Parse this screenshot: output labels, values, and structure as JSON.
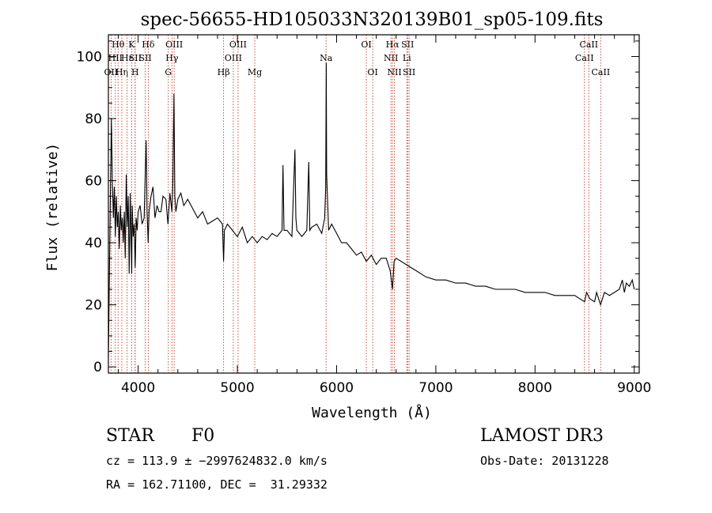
{
  "chart_data": {
    "type": "line",
    "title": "spec-56655-HD105033N320139B01_sp05-109.fits",
    "xlabel": "Wavelength (Å)",
    "ylabel": "Flux (relative)",
    "xlim": [
      3700,
      9050
    ],
    "ylim": [
      -2,
      107
    ],
    "xticks": [
      4000,
      5000,
      6000,
      7000,
      8000,
      9000
    ],
    "yticks": [
      0,
      20,
      40,
      60,
      80,
      100
    ],
    "series": [
      {
        "name": "flux",
        "x": [
          3700,
          3710,
          3720,
          3730,
          3740,
          3750,
          3760,
          3770,
          3780,
          3790,
          3800,
          3810,
          3820,
          3830,
          3840,
          3850,
          3860,
          3870,
          3880,
          3890,
          3900,
          3910,
          3920,
          3930,
          3935,
          3940,
          3950,
          3960,
          3970,
          3980,
          3990,
          4000,
          4020,
          4040,
          4060,
          4080,
          4090,
          4101,
          4110,
          4130,
          4150,
          4170,
          4190,
          4210,
          4230,
          4250,
          4280,
          4300,
          4320,
          4340,
          4350,
          4361,
          4370,
          4380,
          4400,
          4430,
          4460,
          4500,
          4550,
          4600,
          4650,
          4700,
          4750,
          4800,
          4850,
          4861,
          4870,
          4900,
          4950,
          5000,
          5050,
          5100,
          5150,
          5200,
          5250,
          5300,
          5350,
          5400,
          5450,
          5460,
          5470,
          5500,
          5550,
          5580,
          5590,
          5600,
          5650,
          5700,
          5720,
          5730,
          5750,
          5800,
          5850,
          5880,
          5890,
          5896,
          5900,
          5920,
          5950,
          6000,
          6050,
          6100,
          6150,
          6200,
          6250,
          6300,
          6350,
          6400,
          6450,
          6500,
          6540,
          6563,
          6580,
          6600,
          6650,
          6700,
          6750,
          6800,
          6850,
          6900,
          7000,
          7100,
          7200,
          7300,
          7400,
          7500,
          7600,
          7700,
          7800,
          7900,
          8000,
          8100,
          8200,
          8300,
          8400,
          8450,
          8500,
          8520,
          8550,
          8600,
          8620,
          8660,
          8700,
          8750,
          8800,
          8850,
          8880,
          8900,
          8920,
          8950,
          8980,
          9000
        ],
        "y": [
          3,
          30,
          55,
          80,
          60,
          48,
          58,
          42,
          55,
          45,
          50,
          38,
          52,
          44,
          48,
          40,
          50,
          35,
          62,
          45,
          55,
          30,
          56,
          40,
          30,
          52,
          42,
          46,
          32,
          48,
          44,
          50,
          52,
          46,
          48,
          73,
          50,
          40,
          50,
          55,
          58,
          48,
          52,
          50,
          50,
          55,
          54,
          46,
          56,
          50,
          60,
          88,
          55,
          50,
          54,
          56,
          52,
          54,
          51,
          48,
          50,
          46,
          47,
          48,
          46,
          34,
          44,
          46,
          44,
          42,
          45,
          40,
          42,
          40,
          42,
          41,
          43,
          42,
          44,
          65,
          44,
          44,
          42,
          70,
          48,
          44,
          42,
          44,
          66,
          44,
          45,
          46,
          43,
          48,
          58,
          98,
          62,
          44,
          46,
          43,
          40,
          40,
          38,
          36,
          37,
          34,
          36,
          33,
          35,
          35,
          31,
          25,
          34,
          35,
          34,
          33,
          32,
          31,
          30,
          29,
          28,
          28,
          27,
          27,
          26,
          26,
          25,
          25,
          25,
          24,
          24,
          24,
          23,
          23,
          23,
          22,
          21,
          24,
          22,
          21,
          24,
          20,
          24,
          23,
          24,
          25,
          28,
          24,
          27,
          26,
          28,
          25
        ]
      }
    ],
    "spectral_lines": [
      {
        "label": "OII",
        "wavelength": 3727,
        "row": 3
      },
      {
        "label": "Hθ",
        "wavelength": 3798,
        "row": 1
      },
      {
        "label": "HII",
        "wavelength": 3770,
        "row": 2
      },
      {
        "label": "Hη",
        "wavelength": 3835,
        "row": 3
      },
      {
        "label": "Hε",
        "wavelength": 3889,
        "row": 2
      },
      {
        "label": "K",
        "wavelength": 3934,
        "row": 1
      },
      {
        "label": "SII",
        "wavelength": 3970,
        "row": 2
      },
      {
        "label": "H",
        "wavelength": 3969,
        "row": 3
      },
      {
        "label": "Hδ",
        "wavelength": 4102,
        "row": 1
      },
      {
        "label": "SII",
        "wavelength": 4072,
        "row": 2
      },
      {
        "label": "OIII",
        "wavelength": 4363,
        "row": 1
      },
      {
        "label": "Hγ",
        "wavelength": 4341,
        "row": 2
      },
      {
        "label": "G",
        "wavelength": 4304,
        "row": 3
      },
      {
        "label": "Hβ",
        "wavelength": 4861,
        "row": 3
      },
      {
        "label": "OIII",
        "wavelength": 4959,
        "row": 2
      },
      {
        "label": "OIII",
        "wavelength": 5007,
        "row": 1
      },
      {
        "label": "Mg",
        "wavelength": 5175,
        "row": 3
      },
      {
        "label": "Na",
        "wavelength": 5894,
        "row": 2
      },
      {
        "label": "OI",
        "wavelength": 6300,
        "row": 1
      },
      {
        "label": "OI",
        "wavelength": 6364,
        "row": 3
      },
      {
        "label": "NII",
        "wavelength": 6548,
        "row": 2
      },
      {
        "label": "Hα",
        "wavelength": 6563,
        "row": 1
      },
      {
        "label": "NII",
        "wavelength": 6583,
        "row": 3
      },
      {
        "label": "SII",
        "wavelength": 6716,
        "row": 1
      },
      {
        "label": "Li",
        "wavelength": 6708,
        "row": 2
      },
      {
        "label": "SII",
        "wavelength": 6731,
        "row": 3
      },
      {
        "label": "CaII",
        "wavelength": 8498,
        "row": 2
      },
      {
        "label": "CaII",
        "wavelength": 8542,
        "row": 1
      },
      {
        "label": "CaII",
        "wavelength": 8662,
        "row": 3
      }
    ],
    "line_color": "#c0392b"
  },
  "info": {
    "object_class": "STAR",
    "subclass": "F0",
    "survey": "LAMOST DR3",
    "redshift": "cz = 113.9 ± −2997624832.0 km/s",
    "obs_date": "Obs-Date: 20131228",
    "coords": "RA = 162.71100, DEC =  31.29332"
  }
}
